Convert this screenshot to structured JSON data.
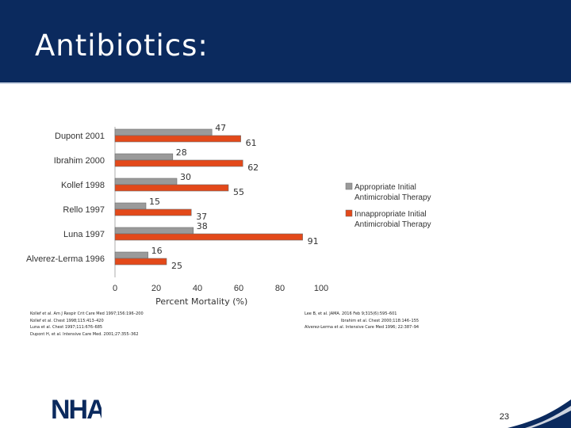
{
  "slide": {
    "title": "Antibiotics:",
    "page_number": "23",
    "logo_text": "NHA"
  },
  "colors": {
    "header": "#0b2a5e",
    "appropriate": "#9a9a9a",
    "inappropriate": "#e3491a"
  },
  "chart_data": {
    "type": "bar",
    "orientation": "horizontal",
    "categories": [
      "Dupont 2001",
      "Ibrahim 2000",
      "Kollef 1998",
      "Rello 1997",
      "Luna 1997",
      "Alverez-Lerma 1996"
    ],
    "series": [
      {
        "name": "Appropriate Initial Antimicrobial Therapy",
        "values": [
          47,
          28,
          30,
          15,
          38,
          16
        ]
      },
      {
        "name": "Innappropriate Initial Antimicrobial Therapy",
        "values": [
          61,
          62,
          55,
          37,
          91,
          25
        ]
      }
    ],
    "xlabel": "Percent Mortality (%)",
    "xlim": [
      0,
      100
    ],
    "xticks": [
      0,
      20,
      40,
      60,
      80,
      100
    ],
    "legend": "right",
    "grid": false
  },
  "references": {
    "left": [
      "Kollef et al. Am J Respir Crit Care Med 1997;156:196–200",
      "Kollef et al. Chest 1998;115:413–420",
      "Luna et al. Chest 1997;111:676–685",
      "Dupont H, et al. Intensive Care Med. 2001;27:355–362"
    ],
    "right": [
      "Lee B, et al. JAMA. 2016 Feb 9;315(6):595–601",
      "Ibrahim et al. Chest 2000;118:146–155",
      "Alverez-Lerma et al. Intensive Care Med 1996; 22:387–94"
    ]
  }
}
